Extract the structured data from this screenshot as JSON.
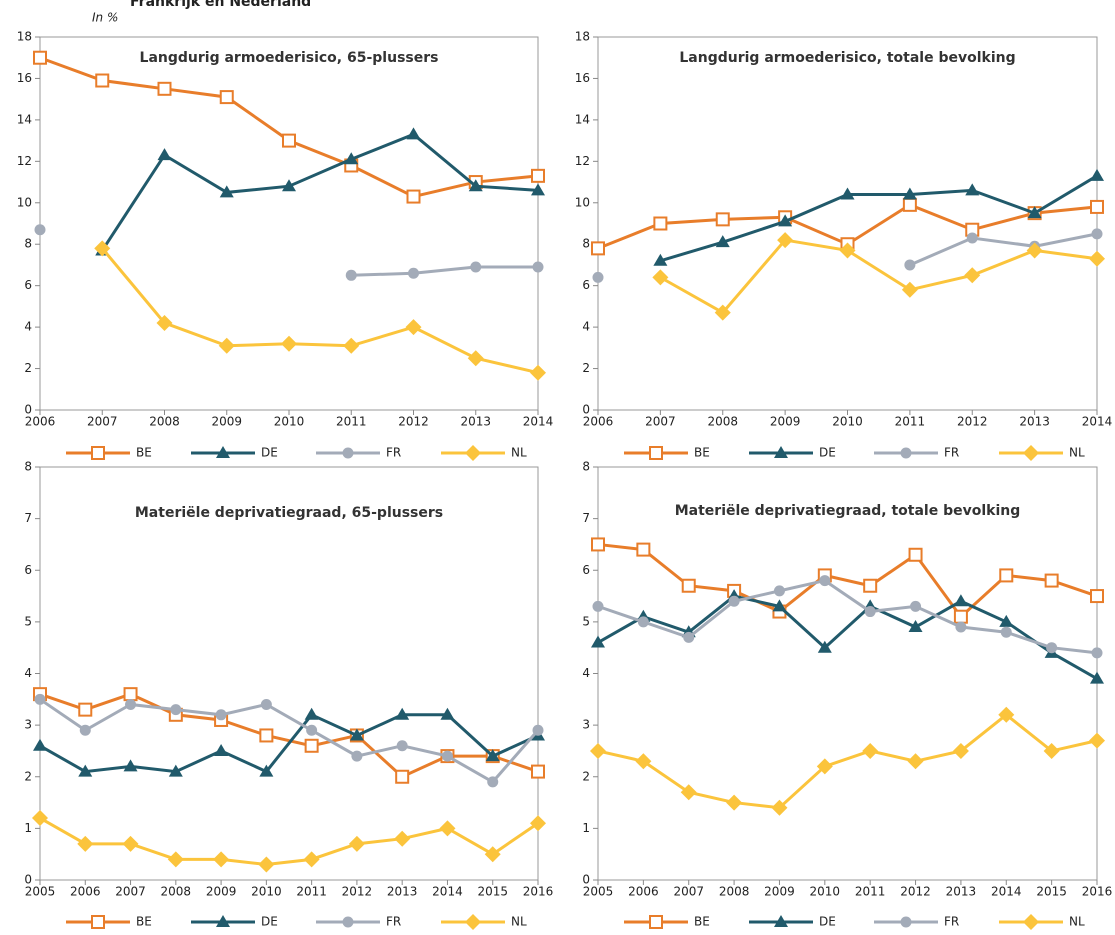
{
  "header": {
    "title": "Frankrijk en Nederland",
    "unit": "In %"
  },
  "chart_data": [
    {
      "type": "line",
      "title": "Langdurig armoederisico, 65-plussers",
      "categories": [
        "2006",
        "2007",
        "2008",
        "2009",
        "2010",
        "2011",
        "2012",
        "2013",
        "2014"
      ],
      "ylim": [
        0,
        18
      ],
      "yticks": [
        0,
        2,
        4,
        6,
        8,
        10,
        12,
        14,
        16,
        18
      ],
      "series": [
        {
          "name": "BE",
          "color": "#e87d2a",
          "marker": "square",
          "values": [
            17,
            15.9,
            15.5,
            15.1,
            13,
            11.8,
            10.3,
            11,
            11.3
          ]
        },
        {
          "name": "DE",
          "color": "#215a6b",
          "marker": "triangle",
          "values": [
            null,
            7.7,
            12.3,
            10.5,
            10.8,
            12.1,
            13.3,
            10.8,
            10.6
          ]
        },
        {
          "name": "FR",
          "color": "#a3abb8",
          "marker": "circle",
          "values": [
            8.7,
            null,
            null,
            null,
            null,
            6.5,
            6.6,
            6.9,
            6.9
          ]
        },
        {
          "name": "NL",
          "color": "#fbc43c",
          "marker": "diamond",
          "values": [
            null,
            7.8,
            4.2,
            3.1,
            3.2,
            3.1,
            4.0,
            2.5,
            1.8
          ]
        }
      ]
    },
    {
      "type": "line",
      "title": "Langdurig armoederisico, totale bevolking",
      "categories": [
        "2006",
        "2007",
        "2008",
        "2009",
        "2010",
        "2011",
        "2012",
        "2013",
        "2014"
      ],
      "ylim": [
        0,
        18
      ],
      "yticks": [
        0,
        2,
        4,
        6,
        8,
        10,
        12,
        14,
        16,
        18
      ],
      "series": [
        {
          "name": "BE",
          "color": "#e87d2a",
          "marker": "square",
          "values": [
            7.8,
            9.0,
            9.2,
            9.3,
            8.0,
            9.9,
            8.7,
            9.5,
            9.8
          ]
        },
        {
          "name": "DE",
          "color": "#215a6b",
          "marker": "triangle",
          "values": [
            null,
            7.2,
            8.1,
            9.1,
            10.4,
            10.4,
            10.6,
            9.5,
            11.3
          ]
        },
        {
          "name": "FR",
          "color": "#a3abb8",
          "marker": "circle",
          "values": [
            6.4,
            null,
            null,
            null,
            null,
            7.0,
            8.3,
            7.9,
            8.5
          ]
        },
        {
          "name": "NL",
          "color": "#fbc43c",
          "marker": "diamond",
          "values": [
            null,
            6.4,
            4.7,
            8.2,
            7.7,
            5.8,
            6.5,
            7.7,
            7.3
          ]
        }
      ]
    },
    {
      "type": "line",
      "title": "Materiële deprivatiegraad, 65-plussers",
      "categories": [
        "2005",
        "2006",
        "2007",
        "2008",
        "2009",
        "2010",
        "2011",
        "2012",
        "2013",
        "2014",
        "2015",
        "2016"
      ],
      "ylim": [
        0,
        8
      ],
      "yticks": [
        0,
        1,
        2,
        3,
        4,
        5,
        6,
        7,
        8
      ],
      "series": [
        {
          "name": "BE",
          "color": "#e87d2a",
          "marker": "square",
          "values": [
            3.6,
            3.3,
            3.6,
            3.2,
            3.1,
            2.8,
            2.6,
            2.8,
            2.0,
            2.4,
            2.4,
            2.1
          ]
        },
        {
          "name": "DE",
          "color": "#215a6b",
          "marker": "triangle",
          "values": [
            2.6,
            2.1,
            2.2,
            2.1,
            2.5,
            2.1,
            3.2,
            2.8,
            3.2,
            3.2,
            2.4,
            2.8
          ]
        },
        {
          "name": "FR",
          "color": "#a3abb8",
          "marker": "circle",
          "values": [
            3.5,
            2.9,
            3.4,
            3.3,
            3.2,
            3.4,
            2.9,
            2.4,
            2.6,
            2.4,
            1.9,
            2.9
          ]
        },
        {
          "name": "NL",
          "color": "#fbc43c",
          "marker": "diamond",
          "values": [
            1.2,
            0.7,
            0.7,
            0.4,
            0.4,
            0.3,
            0.4,
            0.7,
            0.8,
            1.0,
            0.5,
            1.1
          ]
        }
      ]
    },
    {
      "type": "line",
      "title": "Materiële deprivatiegraad, totale bevolking",
      "categories": [
        "2005",
        "2006",
        "2007",
        "2008",
        "2009",
        "2010",
        "2011",
        "2012",
        "2013",
        "2014",
        "2015",
        "2016"
      ],
      "ylim": [
        0,
        8
      ],
      "yticks": [
        0,
        1,
        2,
        3,
        4,
        5,
        6,
        7,
        8
      ],
      "series": [
        {
          "name": "BE",
          "color": "#e87d2a",
          "marker": "square",
          "values": [
            6.5,
            6.4,
            5.7,
            5.6,
            5.2,
            5.9,
            5.7,
            6.3,
            5.1,
            5.9,
            5.8,
            5.5
          ]
        },
        {
          "name": "DE",
          "color": "#215a6b",
          "marker": "triangle",
          "values": [
            4.6,
            5.1,
            4.8,
            5.5,
            5.3,
            4.5,
            5.3,
            4.9,
            5.4,
            5.0,
            4.4,
            3.9
          ]
        },
        {
          "name": "FR",
          "color": "#a3abb8",
          "marker": "circle",
          "values": [
            5.3,
            5.0,
            4.7,
            5.4,
            5.6,
            5.8,
            5.2,
            5.3,
            4.9,
            4.8,
            4.5,
            4.4
          ]
        },
        {
          "name": "NL",
          "color": "#fbc43c",
          "marker": "diamond",
          "values": [
            2.5,
            2.3,
            1.7,
            1.5,
            1.4,
            2.2,
            2.5,
            2.3,
            2.5,
            3.2,
            2.5,
            2.7
          ]
        }
      ]
    }
  ]
}
